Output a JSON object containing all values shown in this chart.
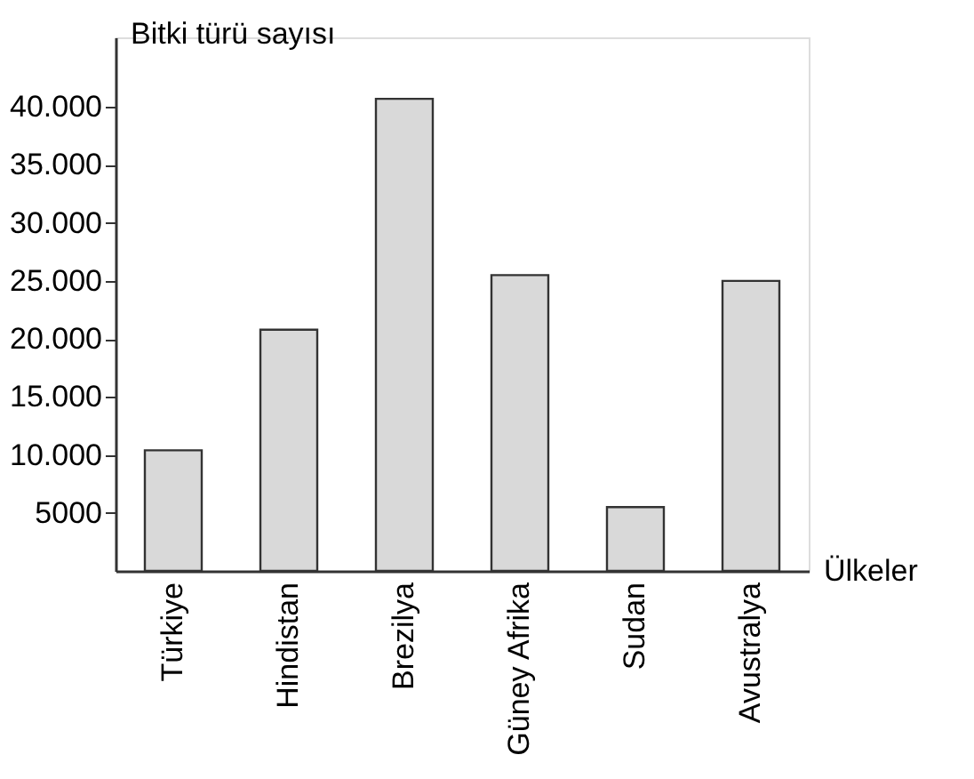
{
  "chart_data": {
    "type": "bar",
    "xlabel": "Ülkeler",
    "ylabel": "Bitki türü sayısı",
    "categories": [
      "Türkiye",
      "Hindistan",
      "Brezilya",
      "Güney Afrika",
      "Sudan",
      "Avustralya"
    ],
    "values": [
      10400,
      20800,
      40700,
      25500,
      5500,
      25000
    ],
    "color": "#d9d9d9",
    "ylim": [
      0,
      46000
    ],
    "yticks": [
      {
        "value": 5000,
        "label": "5000"
      },
      {
        "value": 10000,
        "label": "10.000"
      },
      {
        "value": 15000,
        "label": "15.000"
      },
      {
        "value": 20000,
        "label": "20.000"
      },
      {
        "value": 25000,
        "label": "25.000"
      },
      {
        "value": 30000,
        "label": "30.000"
      },
      {
        "value": 35000,
        "label": "35.000"
      },
      {
        "value": 40000,
        "label": "40.000"
      }
    ],
    "grid": false
  }
}
